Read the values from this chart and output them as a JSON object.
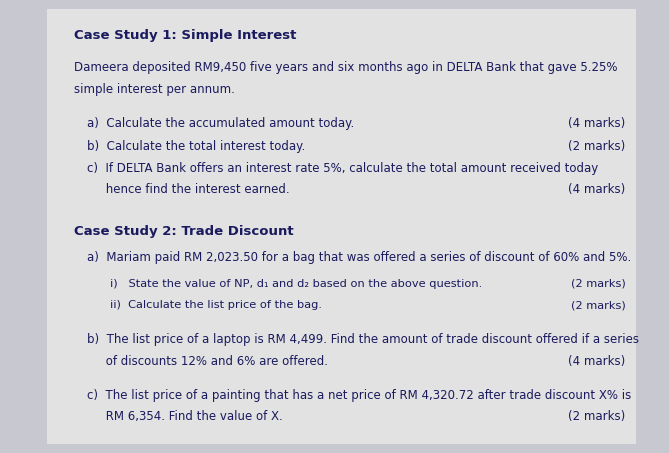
{
  "bg_color": "#c8c8d0",
  "paper_color": "#e2e2e2",
  "text_color": "#1a1a5e",
  "title1": "Case Study 1: Simple Interest",
  "intro1_line1": "Dameera deposited RM9,450 five years and six months ago in DELTA Bank that gave 5.25%",
  "intro1_line2": "simple interest per annum.",
  "q1a": "a)  Calculate the accumulated amount today.",
  "q1a_marks": "(4 marks)",
  "q1b": "b)  Calculate the total interest today.",
  "q1b_marks": "(2 marks)",
  "q1c_line1": "c)  If DELTA Bank offers an interest rate 5%, calculate the total amount received today",
  "q1c_line2": "     hence find the interest earned.",
  "q1c_marks": "(4 marks)",
  "title2": "Case Study 2: Trade Discount",
  "q2a_intro": "a)  Mariam paid RM 2,023.50 for a bag that was offered a series of discount of 60% and 5%.",
  "q2a_i": "i)   State the value of NP, d₁ and d₂ based on the above question.",
  "q2a_i_marks": "(2 marks)",
  "q2a_ii": "ii)  Calculate the list price of the bag.",
  "q2a_ii_marks": "(2 marks)",
  "q2b_line1": "b)  The list price of a laptop is RM 4,499. Find the amount of trade discount offered if a series",
  "q2b_line2": "     of discounts 12% and 6% are offered.",
  "q2b_marks": "(4 marks)",
  "q2c_line1": "c)  The list price of a painting that has a net price of RM 4,320.72 after trade discount X% is",
  "q2c_line2": "     RM 6,354. Find the value of X.",
  "q2c_marks": "(2 marks)",
  "font_size_title": 9.5,
  "font_size_body": 8.5,
  "font_size_sub": 8.2
}
